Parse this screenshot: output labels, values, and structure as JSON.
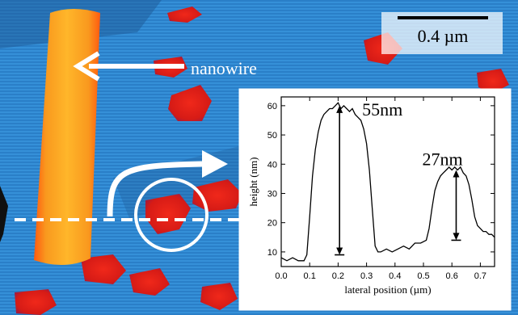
{
  "scale_bar": {
    "label": "0.4 µm"
  },
  "labels": {
    "nanowire": "nanowire"
  },
  "colors": {
    "substrate": "#2f86cf",
    "substrate_dark": "#1f5f9e",
    "island": "#e0201a",
    "wire_core": "#f5a41f",
    "wire_edge": "#ff6a10",
    "arrow": "#ffffff"
  },
  "chart_data": {
    "type": "line",
    "xlabel": "lateral position (µm)",
    "ylabel": "height (nm)",
    "xlim": [
      0.0,
      0.75
    ],
    "ylim": [
      5,
      63
    ],
    "xticks": [
      "0.0",
      "0.1",
      "0.2",
      "0.3",
      "0.4",
      "0.5",
      "0.6",
      "0.7"
    ],
    "yticks": [
      "10",
      "20",
      "30",
      "40",
      "50",
      "60"
    ],
    "grid": false,
    "x": [
      0.0,
      0.02,
      0.04,
      0.06,
      0.08,
      0.09,
      0.1,
      0.11,
      0.12,
      0.13,
      0.14,
      0.15,
      0.16,
      0.17,
      0.18,
      0.19,
      0.2,
      0.21,
      0.22,
      0.23,
      0.24,
      0.25,
      0.26,
      0.27,
      0.28,
      0.29,
      0.3,
      0.31,
      0.32,
      0.33,
      0.34,
      0.35,
      0.37,
      0.39,
      0.41,
      0.43,
      0.45,
      0.47,
      0.49,
      0.51,
      0.52,
      0.53,
      0.54,
      0.55,
      0.56,
      0.57,
      0.58,
      0.59,
      0.6,
      0.61,
      0.62,
      0.63,
      0.64,
      0.65,
      0.66,
      0.67,
      0.68,
      0.69,
      0.7,
      0.71,
      0.72,
      0.73,
      0.74,
      0.75
    ],
    "y": [
      8,
      7,
      8,
      7,
      7,
      9,
      22,
      36,
      45,
      51,
      55,
      57,
      58,
      59,
      59,
      60,
      61,
      59,
      60,
      59,
      58,
      59,
      57,
      56,
      55,
      52,
      47,
      38,
      25,
      12,
      10,
      10,
      11,
      10,
      11,
      12,
      11,
      13,
      13,
      14,
      18,
      25,
      31,
      34,
      36,
      37,
      38,
      39,
      38,
      39,
      38,
      39,
      37,
      36,
      33,
      28,
      22,
      19,
      18,
      17,
      17,
      16,
      16,
      15
    ],
    "annotations": [
      {
        "text": "55nm",
        "x": 0.205,
        "y_top": 60,
        "y_bottom": 9
      },
      {
        "text": "27nm",
        "x": 0.615,
        "y_top": 38,
        "y_bottom": 14
      }
    ]
  }
}
